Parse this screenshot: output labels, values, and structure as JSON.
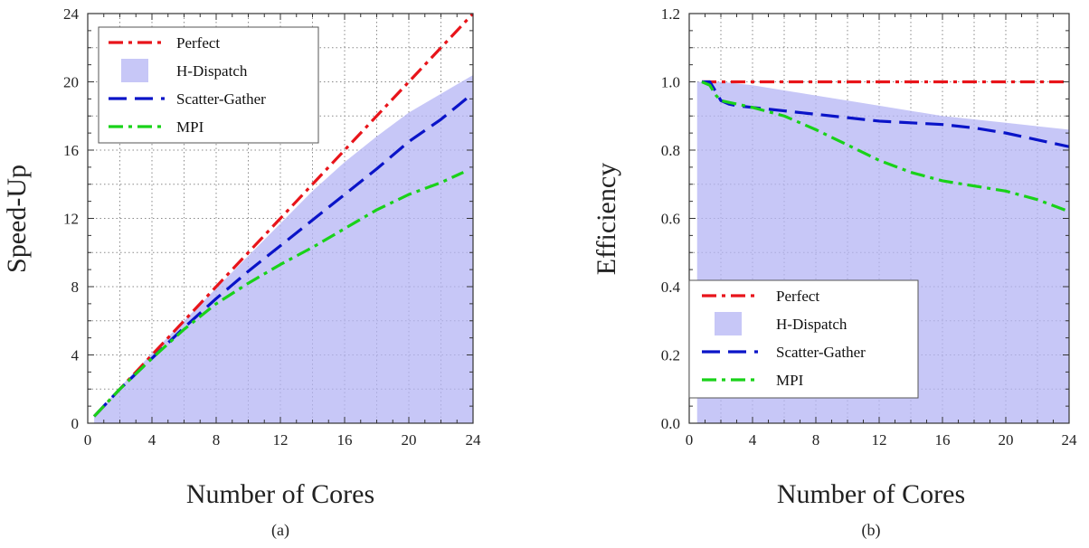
{
  "chart_data": [
    {
      "type": "line",
      "caption": "(a)",
      "xlabel": "Number of Cores",
      "ylabel": "Speed-Up",
      "xlim": [
        0,
        24
      ],
      "ylim": [
        0,
        24
      ],
      "xticks": [
        0,
        4,
        8,
        12,
        16,
        20,
        24
      ],
      "yticks": [
        0,
        4,
        8,
        12,
        16,
        20,
        24
      ],
      "grid": true,
      "legend_position": "top-left",
      "series": [
        {
          "name": "Perfect",
          "kind": "line",
          "color": "#e8141a",
          "dash": "dashdot",
          "x": [
            0.4,
            24
          ],
          "y": [
            0.4,
            24
          ]
        },
        {
          "name": "H-Dispatch",
          "kind": "area",
          "color": "#b4b4f4",
          "x": [
            0.4,
            2,
            4,
            6,
            8,
            10,
            12,
            14,
            16,
            18,
            20,
            22,
            24
          ],
          "y": [
            0.4,
            2.1,
            4.1,
            6.0,
            7.9,
            9.8,
            11.7,
            13.6,
            15.3,
            16.8,
            18.2,
            19.3,
            20.4
          ]
        },
        {
          "name": "Scatter-Gather",
          "kind": "line",
          "color": "#0a14c8",
          "dash": "dashed",
          "x": [
            0.4,
            2,
            4,
            6,
            8,
            10,
            12,
            14,
            16,
            18,
            20,
            22,
            23.7
          ],
          "y": [
            0.4,
            2.0,
            3.8,
            5.6,
            7.3,
            8.9,
            10.4,
            11.9,
            13.4,
            14.9,
            16.5,
            17.8,
            19.1
          ]
        },
        {
          "name": "MPI",
          "kind": "line",
          "color": "#19d219",
          "dash": "dashdot",
          "x": [
            0.4,
            2,
            4,
            6,
            8,
            10,
            12,
            14,
            16,
            18,
            20,
            22,
            23.4
          ],
          "y": [
            0.4,
            2.0,
            3.8,
            5.5,
            7.0,
            8.2,
            9.3,
            10.3,
            11.4,
            12.5,
            13.4,
            14.1,
            14.7
          ]
        }
      ]
    },
    {
      "type": "line",
      "caption": "(b)",
      "xlabel": "Number of Cores",
      "ylabel": "Efficiency",
      "xlim": [
        0,
        24
      ],
      "ylim": [
        0,
        1.2
      ],
      "xticks": [
        0,
        4,
        8,
        12,
        16,
        20,
        24
      ],
      "yticks": [
        "0.0",
        "0.2",
        "0.4",
        "0.6",
        "0.8",
        "1.0",
        "1.2"
      ],
      "grid": true,
      "legend_position": "bottom-left",
      "series": [
        {
          "name": "Perfect",
          "kind": "line",
          "color": "#e8141a",
          "dash": "dashdot",
          "x": [
            0.8,
            24
          ],
          "y": [
            1.0,
            1.0
          ]
        },
        {
          "name": "H-Dispatch",
          "kind": "area",
          "color": "#b4b4f4",
          "x": [
            0.5,
            2,
            4,
            6,
            8,
            10,
            12,
            14,
            16,
            18,
            20,
            22,
            24
          ],
          "y": [
            1.0,
            1.0,
            0.99,
            0.975,
            0.96,
            0.945,
            0.93,
            0.915,
            0.9,
            0.89,
            0.88,
            0.87,
            0.86
          ]
        },
        {
          "name": "Scatter-Gather",
          "kind": "line",
          "color": "#0a14c8",
          "dash": "dashed",
          "x": [
            0.8,
            1.3,
            1.7,
            2,
            2.5,
            3,
            4,
            6,
            8,
            10,
            12,
            14,
            16,
            18,
            20,
            22,
            24
          ],
          "y": [
            1.0,
            1.0,
            0.97,
            0.945,
            0.935,
            0.93,
            0.925,
            0.915,
            0.905,
            0.895,
            0.885,
            0.88,
            0.875,
            0.865,
            0.85,
            0.83,
            0.81
          ]
        },
        {
          "name": "MPI",
          "kind": "line",
          "color": "#19d219",
          "dash": "dashdot",
          "x": [
            0.8,
            1.3,
            1.7,
            2,
            2.5,
            3,
            4,
            6,
            8,
            10,
            12,
            14,
            16,
            18,
            20,
            22,
            24
          ],
          "y": [
            1.0,
            0.99,
            0.96,
            0.945,
            0.94,
            0.935,
            0.925,
            0.9,
            0.86,
            0.815,
            0.77,
            0.735,
            0.71,
            0.695,
            0.68,
            0.655,
            0.62
          ]
        }
      ]
    }
  ]
}
